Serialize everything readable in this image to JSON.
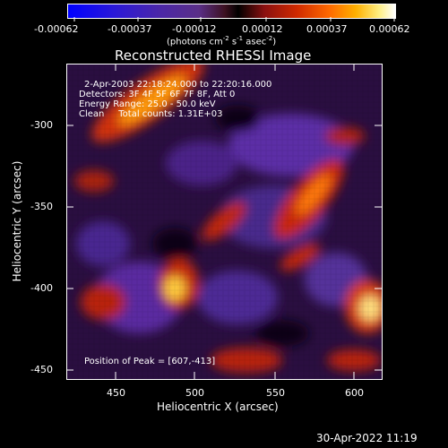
{
  "colorbar": {
    "ticks": [
      "-0.00062",
      "-0.00037",
      "-0.00012",
      "0.00012",
      "0.00037",
      "0.00062"
    ],
    "units_label": "(photons cm",
    "units_sup1": "-2",
    "units_mid": " s",
    "units_sup2": "-1",
    "units_end": " asec",
    "units_sup3": "-2",
    "units_close": ")"
  },
  "plot": {
    "title": "Reconstructed RHESSI Image",
    "xlabel": "Heliocentric X (arcsec)",
    "ylabel": "Heliocentric Y (arcsec)",
    "x_ticks": [
      "450",
      "500",
      "550",
      "600"
    ],
    "y_ticks": [
      "-300",
      "-350",
      "-400",
      "-450"
    ],
    "info": {
      "time": "2-Apr-2003 22:18:24.000 to 22:20:16.000",
      "detectors": "Detectors: 3F 4F 5F 6F 7F 8F, Att 0",
      "energy": "Energy Range: 25.0 - 50.0 keV",
      "clean": "Clean     Total counts: 1.31E+03"
    },
    "peak": "Position of Peak = [607,-413]"
  },
  "footer": {
    "date": "30-Apr-2022 11:19"
  },
  "colors": {
    "background": "#000000",
    "axis": "#ffffff"
  }
}
